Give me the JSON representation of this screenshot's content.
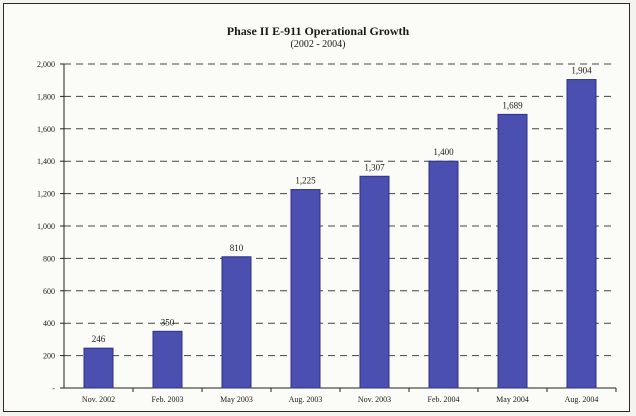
{
  "chart_data": {
    "type": "bar",
    "title": "Phase II E-911 Operational Growth",
    "subtitle": "(2002 - 2004)",
    "categories": [
      "Nov. 2002",
      "Feb. 2003",
      "May 2003",
      "Aug. 2003",
      "Nov. 2003",
      "Feb. 2004",
      "May 2004",
      "Aug. 2004"
    ],
    "values": [
      246,
      350,
      810,
      1225,
      1307,
      1400,
      1689,
      1904
    ],
    "value_labels": [
      "246",
      "350",
      "810",
      "1,225",
      "1,307",
      "1,400",
      "1,689",
      "1,904"
    ],
    "y_ticks": [
      0,
      200,
      400,
      600,
      800,
      1000,
      1200,
      1400,
      1600,
      1800,
      2000
    ],
    "y_tick_labels": [
      "-",
      "200",
      "400",
      "600",
      "800",
      "1,000",
      "1,200",
      "1,400",
      "1,600",
      "1,800",
      "2,000"
    ],
    "ylim": [
      0,
      2000
    ],
    "xlabel": "",
    "ylabel": "",
    "grid": "dashed horizontal",
    "legend": "none",
    "colors": {
      "bar": "#4a4fb0",
      "bar_edge": "#2e3288",
      "grid": "#444444",
      "frame": "#2a2a2a"
    }
  }
}
